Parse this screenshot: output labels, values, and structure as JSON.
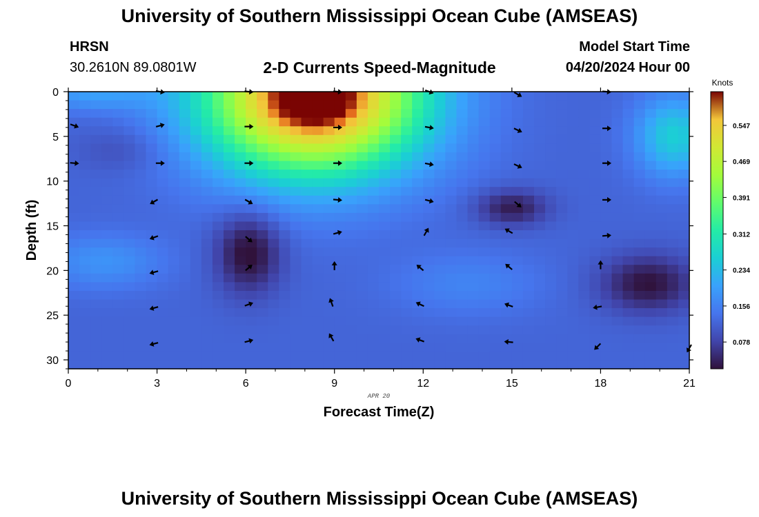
{
  "header": {
    "title": "University of Southern Mississippi Ocean Cube (AMSEAS)",
    "station": "HRSN",
    "coordinates": "30.2610N  89.0801W",
    "subtitle": "2-D Currents Speed-Magnitude",
    "model_start_label": "Model Start Time",
    "model_start_value": "04/20/2024 Hour 00"
  },
  "footer": {
    "title": "University of Southern Mississippi Ocean Cube (AMSEAS)"
  },
  "chart_data": {
    "type": "heatmap",
    "title": "2-D Currents Speed-Magnitude",
    "xlabel": "Forecast Time(Z)",
    "ylabel": "Depth (ft)",
    "date_label": "APR 20",
    "xlim": [
      0,
      21
    ],
    "ylim": [
      0,
      31
    ],
    "x_ticks": [
      0,
      3,
      6,
      9,
      12,
      15,
      18,
      21
    ],
    "y_ticks": [
      0,
      5,
      10,
      15,
      20,
      25,
      30
    ],
    "colorbar": {
      "label": "Knots",
      "range": [
        0.02,
        0.62
      ],
      "ticks": [
        0.078,
        0.156,
        0.234,
        0.312,
        0.391,
        0.469,
        0.547
      ],
      "tick_labels": [
        "0.078",
        "0.156",
        "0.234",
        "0.312",
        "0.391",
        "0.469",
        "0.547"
      ]
    },
    "speed_features": [
      {
        "name": "surface-jet",
        "time": 8.3,
        "depth": 0.5,
        "speed": 0.56,
        "spread_time": 3.6,
        "spread_depth": 8.5
      },
      {
        "name": "upper-left-band",
        "time": 0.8,
        "depth": 0.3,
        "speed": 0.07,
        "spread_time": 2.0,
        "spread_depth": 1.8
      },
      {
        "name": "low-core-6h",
        "time": 6.1,
        "depth": 18.0,
        "speed": -0.11,
        "spread_time": 1.1,
        "spread_depth": 4.5
      },
      {
        "name": "low-core-15h",
        "time": 15.0,
        "depth": 13.0,
        "speed": -0.09,
        "spread_time": 1.2,
        "spread_depth": 2.0
      },
      {
        "name": "low-core-19h",
        "time": 19.6,
        "depth": 21.5,
        "speed": -0.1,
        "spread_time": 1.6,
        "spread_depth": 3.2
      },
      {
        "name": "mid-left-cyan",
        "time": 1.2,
        "depth": 19.0,
        "speed": 0.06,
        "spread_time": 2.0,
        "spread_depth": 3.0
      },
      {
        "name": "mid-right-cyan",
        "time": 13.5,
        "depth": 21.5,
        "speed": 0.04,
        "spread_time": 2.5,
        "spread_depth": 3.5
      },
      {
        "name": "right-surface",
        "time": 20.5,
        "depth": 5.0,
        "speed": 0.14,
        "spread_time": 1.3,
        "spread_depth": 4.5
      },
      {
        "name": "left-upper-low",
        "time": 1.8,
        "depth": 6.5,
        "speed": -0.03,
        "spread_time": 1.5,
        "spread_depth": 2.5
      }
    ],
    "base_speed": 0.12,
    "vectors": [
      {
        "time": 0.2,
        "depth": 3.8,
        "dir_deg": 20
      },
      {
        "time": 0.2,
        "depth": 8.0,
        "dir_deg": 5
      },
      {
        "time": 3.1,
        "depth": 0.0,
        "dir_deg": 10
      },
      {
        "time": 3.1,
        "depth": 3.8,
        "dir_deg": -15
      },
      {
        "time": 3.1,
        "depth": 8.0,
        "dir_deg": 0
      },
      {
        "time": 2.9,
        "depth": 12.3,
        "dir_deg": 150
      },
      {
        "time": 2.9,
        "depth": 16.3,
        "dir_deg": 160
      },
      {
        "time": 2.9,
        "depth": 20.2,
        "dir_deg": 165
      },
      {
        "time": 2.9,
        "depth": 24.2,
        "dir_deg": 165
      },
      {
        "time": 2.9,
        "depth": 28.2,
        "dir_deg": 165
      },
      {
        "time": 6.1,
        "depth": 0.0,
        "dir_deg": 5
      },
      {
        "time": 6.1,
        "depth": 3.9,
        "dir_deg": 0
      },
      {
        "time": 6.1,
        "depth": 8.0,
        "dir_deg": 0
      },
      {
        "time": 6.1,
        "depth": 12.3,
        "dir_deg": 30
      },
      {
        "time": 6.1,
        "depth": 16.5,
        "dir_deg": 40
      },
      {
        "time": 6.1,
        "depth": 19.7,
        "dir_deg": -40
      },
      {
        "time": 6.1,
        "depth": 23.8,
        "dir_deg": -20
      },
      {
        "time": 6.1,
        "depth": 27.9,
        "dir_deg": -15
      },
      {
        "time": 9.1,
        "depth": 0.0,
        "dir_deg": 5
      },
      {
        "time": 9.1,
        "depth": 4.0,
        "dir_deg": 0
      },
      {
        "time": 9.1,
        "depth": 8.0,
        "dir_deg": 0
      },
      {
        "time": 9.1,
        "depth": 12.1,
        "dir_deg": 5
      },
      {
        "time": 9.1,
        "depth": 15.8,
        "dir_deg": -15
      },
      {
        "time": 9.0,
        "depth": 19.5,
        "dir_deg": -90
      },
      {
        "time": 8.9,
        "depth": 23.6,
        "dir_deg": -110
      },
      {
        "time": 8.9,
        "depth": 27.5,
        "dir_deg": -120
      },
      {
        "time": 12.2,
        "depth": 0.0,
        "dir_deg": 20
      },
      {
        "time": 12.2,
        "depth": 4.0,
        "dir_deg": 10
      },
      {
        "time": 12.2,
        "depth": 8.1,
        "dir_deg": 10
      },
      {
        "time": 12.2,
        "depth": 12.2,
        "dir_deg": 15
      },
      {
        "time": 12.1,
        "depth": 15.7,
        "dir_deg": -60
      },
      {
        "time": 11.9,
        "depth": 19.7,
        "dir_deg": -140
      },
      {
        "time": 11.9,
        "depth": 23.8,
        "dir_deg": -155
      },
      {
        "time": 11.9,
        "depth": 27.8,
        "dir_deg": -160
      },
      {
        "time": 15.2,
        "depth": 0.3,
        "dir_deg": 30
      },
      {
        "time": 15.2,
        "depth": 4.3,
        "dir_deg": 25
      },
      {
        "time": 15.2,
        "depth": 8.3,
        "dir_deg": 25
      },
      {
        "time": 15.2,
        "depth": 12.6,
        "dir_deg": 40
      },
      {
        "time": 14.9,
        "depth": 15.6,
        "dir_deg": -150
      },
      {
        "time": 14.9,
        "depth": 19.6,
        "dir_deg": -140
      },
      {
        "time": 14.9,
        "depth": 23.9,
        "dir_deg": -160
      },
      {
        "time": 14.9,
        "depth": 28.0,
        "dir_deg": -175
      },
      {
        "time": 18.2,
        "depth": 0.0,
        "dir_deg": 5
      },
      {
        "time": 18.2,
        "depth": 4.1,
        "dir_deg": 0
      },
      {
        "time": 18.2,
        "depth": 8.0,
        "dir_deg": 0
      },
      {
        "time": 18.2,
        "depth": 12.1,
        "dir_deg": 0
      },
      {
        "time": 18.2,
        "depth": 16.1,
        "dir_deg": -5
      },
      {
        "time": 18.0,
        "depth": 19.4,
        "dir_deg": -90
      },
      {
        "time": 17.9,
        "depth": 24.1,
        "dir_deg": 170
      },
      {
        "time": 17.9,
        "depth": 28.5,
        "dir_deg": 135
      },
      {
        "time": 21.0,
        "depth": 28.7,
        "dir_deg": 120
      }
    ]
  }
}
